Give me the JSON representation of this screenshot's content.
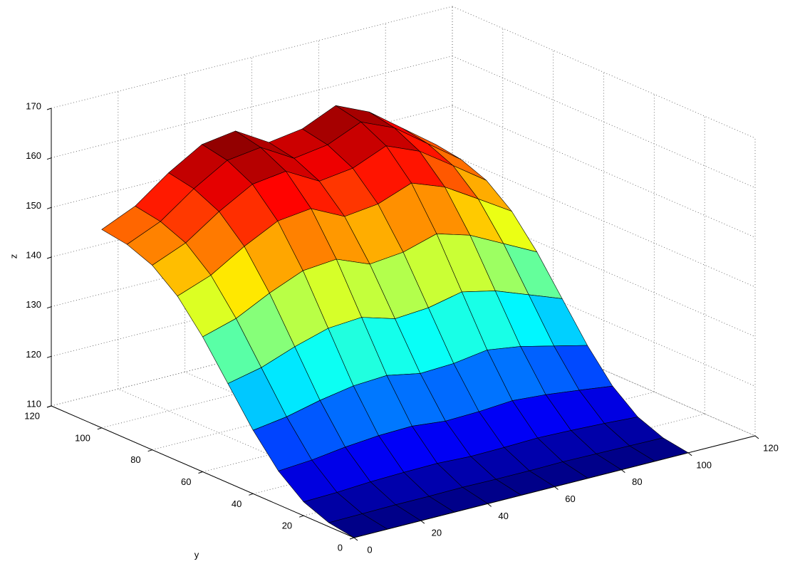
{
  "chart_data": {
    "type": "surface",
    "zlabel": "z",
    "ylabel": "y",
    "colormap": "jet",
    "edge_color": "#000000",
    "grid": true,
    "x": [
      0,
      10,
      20,
      30,
      40,
      50,
      60,
      70,
      80,
      90,
      100
    ],
    "y": [
      0,
      10,
      20,
      30,
      40,
      50,
      60,
      70,
      80,
      90,
      100
    ],
    "z": [
      [
        110,
        110,
        110,
        110,
        110,
        110,
        110,
        110,
        110,
        110,
        110
      ],
      [
        110.8,
        110.9,
        111,
        111,
        111.1,
        111,
        111,
        111.1,
        111,
        110.9,
        110.8
      ],
      [
        112.8,
        113,
        113.4,
        113.6,
        113.7,
        113.4,
        113.5,
        113.7,
        113.5,
        113.2,
        112.8
      ],
      [
        116.8,
        117.3,
        118.2,
        118.8,
        119,
        118.3,
        118.5,
        119,
        118.5,
        117.7,
        116.8
      ],
      [
        122.8,
        123.8,
        125.4,
        126.6,
        127,
        125.7,
        126,
        127,
        126,
        124.4,
        122.8
      ],
      [
        130,
        131.5,
        134,
        136,
        136.5,
        134.5,
        135,
        136.5,
        135,
        132.5,
        130
      ],
      [
        137.2,
        139.2,
        142.6,
        145.4,
        146,
        143.3,
        144,
        146,
        144,
        140.6,
        137.2
      ],
      [
        143.2,
        145.7,
        149.8,
        153.2,
        154,
        150.7,
        151.5,
        154,
        151.5,
        147.4,
        143.2
      ],
      [
        147.2,
        150,
        154.6,
        158.4,
        159.3,
        155.6,
        156.5,
        159.3,
        156.5,
        151.9,
        147.2
      ],
      [
        149.2,
        152.1,
        157,
        161,
        161.9,
        158,
        159,
        161.9,
        159,
        154.1,
        149.2
      ],
      [
        150,
        153,
        158,
        162,
        163,
        159,
        160,
        163,
        160,
        155,
        150
      ]
    ],
    "xlim": [
      0,
      120
    ],
    "xticks": [
      0,
      20,
      40,
      60,
      80,
      100,
      120
    ],
    "ylim": [
      0,
      120
    ],
    "yticks": [
      0,
      20,
      40,
      60,
      80,
      100,
      120
    ],
    "zlim": [
      110,
      170
    ],
    "zticks": [
      110,
      120,
      130,
      140,
      150,
      160,
      170
    ]
  }
}
